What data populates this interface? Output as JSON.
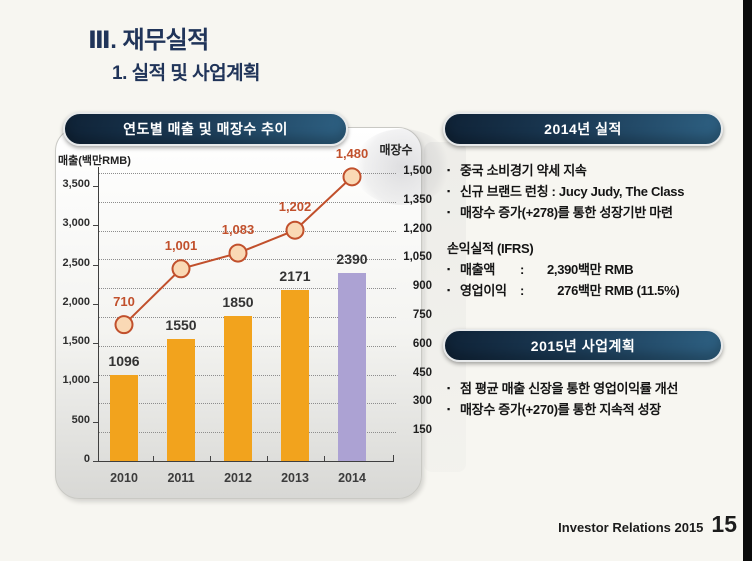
{
  "slide": {
    "title": "Ⅲ. 재무실적",
    "subtitle": "1. 실적 및 사업계획"
  },
  "footer": {
    "label": "Investor Relations 2015",
    "page": "15"
  },
  "chart_panel": {
    "header": "연도별 매출 및 매장수 추이"
  },
  "chart_data": {
    "type": "bar+line",
    "title": "연도별 매출 및 매장수 추이",
    "categories": [
      "2010",
      "2011",
      "2012",
      "2013",
      "2014"
    ],
    "series": [
      {
        "name": "매출",
        "type": "bar",
        "axis": "left",
        "values": [
          1096,
          1550,
          1850,
          2171,
          2390
        ],
        "labels": [
          "1096",
          "1550",
          "1850",
          "2171",
          "2390"
        ],
        "colors": [
          "#F2A31D",
          "#F2A31D",
          "#F2A31D",
          "#F2A31D",
          "#ACA2D3"
        ]
      },
      {
        "name": "매장수",
        "type": "line",
        "axis": "right",
        "values": [
          710,
          1001,
          1083,
          1202,
          1480
        ],
        "labels": [
          "710",
          "1,001",
          "1,083",
          "1,202",
          "1,480"
        ],
        "color": "#C1502C",
        "marker_fill": "#FAD9B5"
      }
    ],
    "left_axis": {
      "label": "매출(백만RMB)",
      "min": 0,
      "max": 3500,
      "tick_step": 500,
      "tick_labels": [
        "0",
        "500",
        "1,000",
        "1,500",
        "2,000",
        "2,500",
        "3,000",
        "3,500"
      ]
    },
    "right_axis": {
      "label": "매장수",
      "min": 0,
      "max": 1500,
      "tick_step": 150,
      "tick_labels": [
        "150",
        "300",
        "450",
        "600",
        "750",
        "900",
        "1,050",
        "1,200",
        "1,350",
        "1,500"
      ]
    },
    "grid": "dotted horizontal lines at right-axis ticks",
    "legend": "none"
  },
  "panel_2014": {
    "header": "2014년 실적",
    "bullets": [
      "중국 소비경기 약세 지속",
      "신규 브랜드 런칭 : Jucy Judy, The Class",
      "매장수 증가(+278)를 통한 성장기반 마련"
    ],
    "subheading": "손익실적 (IFRS)",
    "metrics": [
      {
        "label": "매출액",
        "num": "2,390",
        "unit": "백만 RMB"
      },
      {
        "label": "영업이익",
        "num": "276",
        "unit": "백만 RMB (11.5%)"
      }
    ]
  },
  "panel_2015": {
    "header": "2015년 사업계획",
    "bullets": [
      "점 평균 매출 신장을 통한 영업이익률 개선",
      "매장수 증가(+270)를 통한 지속적 성장"
    ]
  },
  "colors": {
    "accent_navy": "#1B3A55",
    "bar_orange": "#F2A31D",
    "bar_purple": "#ACA2D3",
    "line_orange": "#C1502C",
    "marker_fill": "#FAD9B5"
  }
}
